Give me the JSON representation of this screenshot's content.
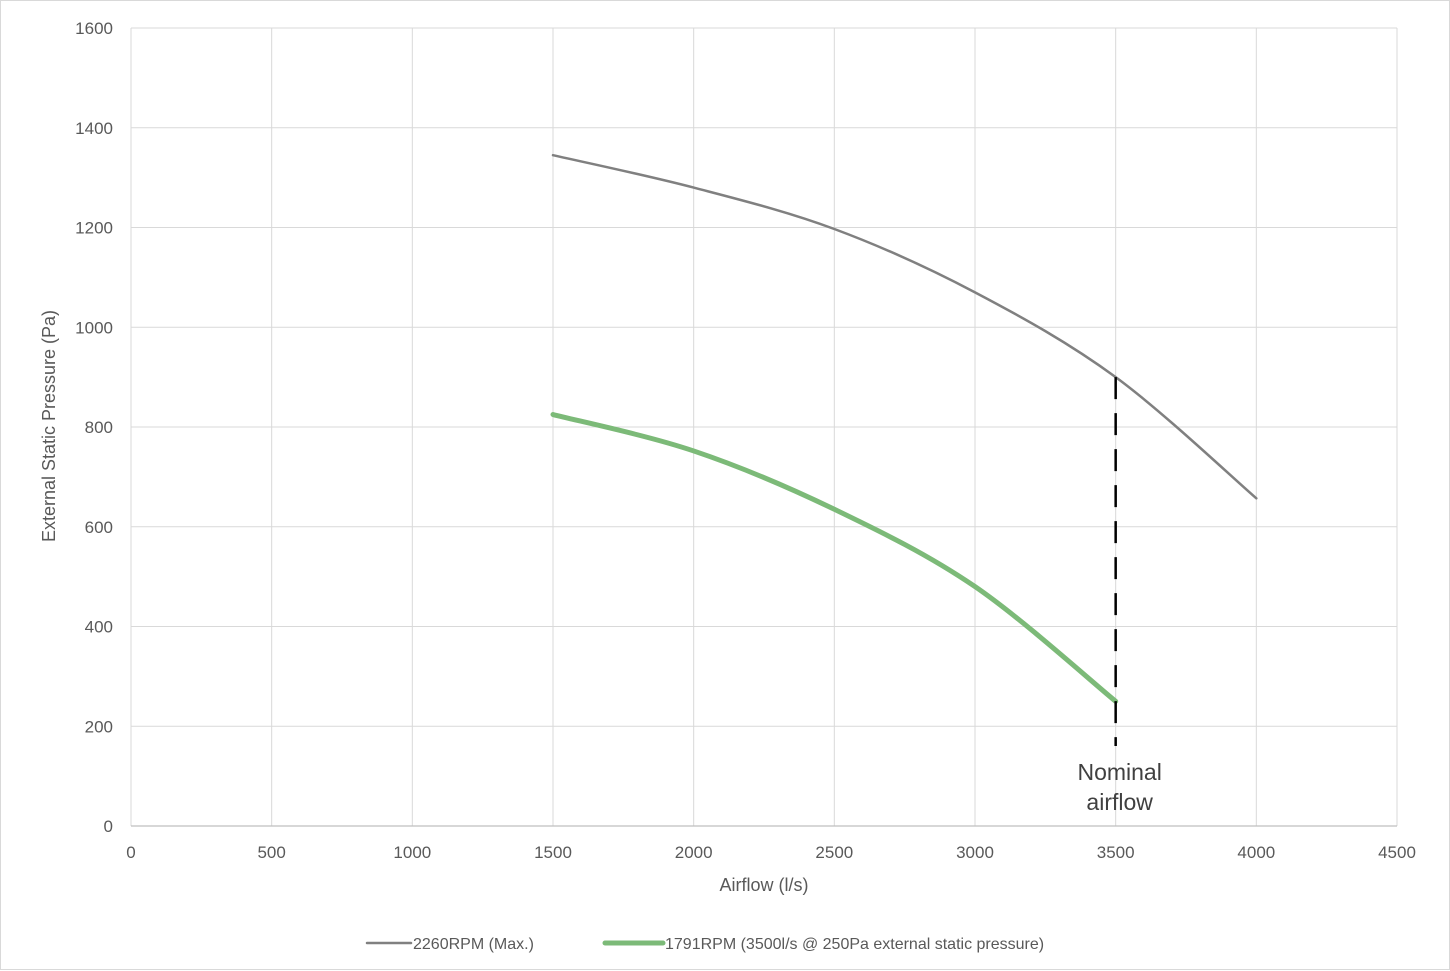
{
  "chart_data": {
    "type": "line",
    "xlabel": "Airflow (l/s)",
    "ylabel": "External Static Pressure (Pa)",
    "xlim": [
      0,
      4500
    ],
    "ylim": [
      0,
      1600
    ],
    "x_ticks": [
      0,
      500,
      1000,
      1500,
      2000,
      2500,
      3000,
      3500,
      4000,
      4500
    ],
    "y_ticks": [
      0,
      200,
      400,
      600,
      800,
      1000,
      1200,
      1400,
      1600
    ],
    "grid": true,
    "legend_position": "bottom",
    "series": [
      {
        "name": "2260RPM (Max.)",
        "color": "#808080",
        "points": [
          [
            1500,
            1345
          ],
          [
            2000,
            1280
          ],
          [
            2500,
            1197
          ],
          [
            3000,
            1070
          ],
          [
            3500,
            900
          ],
          [
            4000,
            657
          ]
        ]
      },
      {
        "name": "1791RPM (3500l/s @ 250Pa external static pressure)",
        "color": "#7cba78",
        "points": [
          [
            1500,
            825
          ],
          [
            2000,
            752
          ],
          [
            2500,
            635
          ],
          [
            3000,
            480
          ],
          [
            3500,
            250
          ]
        ]
      }
    ],
    "annotation": {
      "lines": [
        "Nominal",
        "airflow"
      ],
      "x": 3500,
      "line_y_range": [
        0,
        900
      ],
      "style": "dashed"
    }
  }
}
